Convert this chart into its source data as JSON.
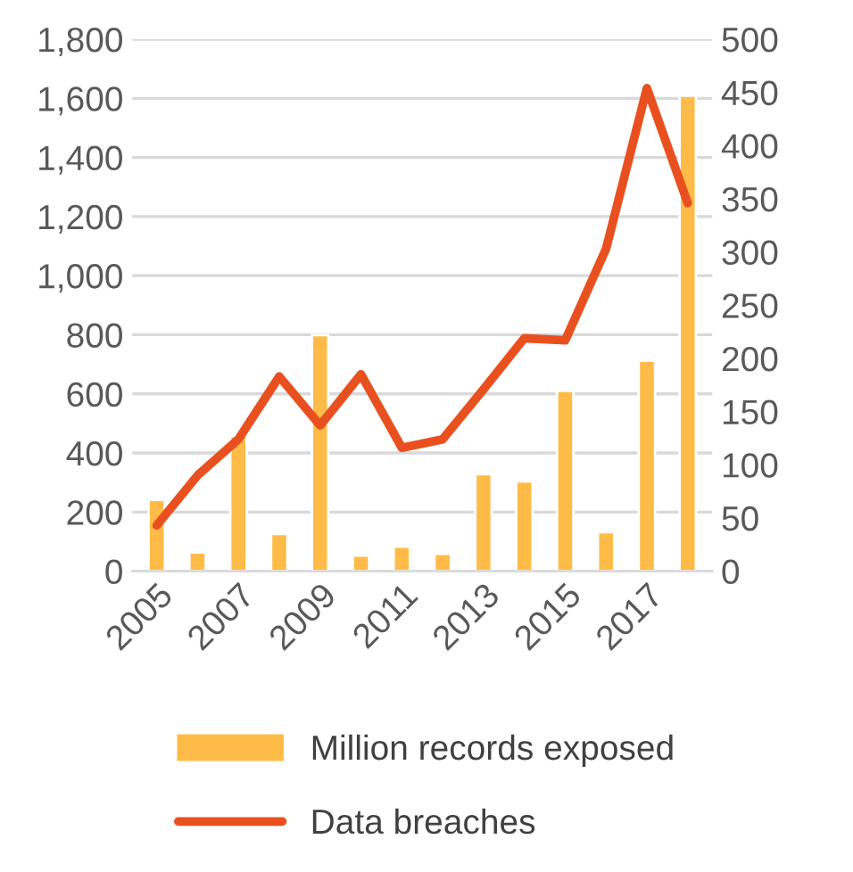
{
  "chart_data": {
    "type": "bar",
    "categories": [
      "2005",
      null,
      "2007",
      null,
      "2009",
      null,
      "2011",
      null,
      "2013",
      null,
      "2015",
      null,
      "2017",
      null
    ],
    "series": [
      {
        "name": "Million records exposed",
        "color": "#ffbb47",
        "values": [
          241,
          63,
          458,
          126,
          799,
          53,
          83,
          59,
          328,
          304,
          610,
          132,
          712,
          1609
        ]
      },
      {
        "name": "Data breaches",
        "type": "line",
        "axis": "y2",
        "color": "#e9501f",
        "values": [
          43,
          90,
          124,
          183,
          137,
          185,
          116,
          124,
          171,
          219,
          217,
          303,
          454,
          346
        ]
      }
    ],
    "ylim": [
      0,
      1800
    ],
    "yticks": [
      0,
      {
        "value": 200,
        "label": "200"
      },
      {
        "value": 400,
        "label": "400"
      },
      {
        "value": 600,
        "label": "600"
      },
      {
        "value": 800,
        "label": "800"
      },
      {
        "value": 1000,
        "label": "1,000"
      },
      {
        "value": 1200,
        "label": "1,200"
      },
      {
        "value": 1400,
        "label": "1,400"
      },
      {
        "value": 1600,
        "label": "1,600"
      },
      {
        "value": 1800,
        "label": "1,800"
      }
    ],
    "y2lim": [
      0,
      500
    ],
    "y2ticks": [
      0,
      50,
      100,
      150,
      200,
      250,
      300,
      350,
      400,
      450,
      500
    ],
    "grid": "y",
    "legend": "bottom",
    "marker": "none",
    "line_style": "solid"
  }
}
